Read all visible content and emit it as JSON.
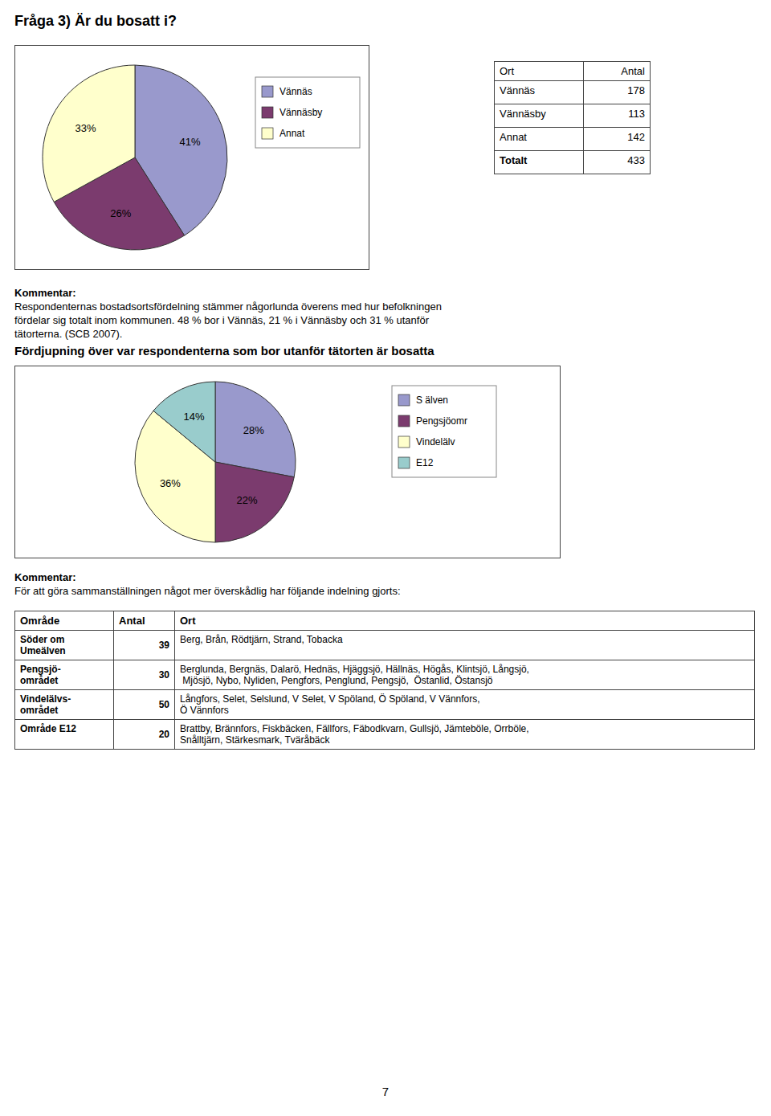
{
  "page_number": "7",
  "chart_data": [
    {
      "type": "pie",
      "title": "Fråga 3) Är du bosatt i?",
      "categories": [
        "Vännäs",
        "Vännäsby",
        "Annat"
      ],
      "values": [
        41,
        26,
        33
      ],
      "value_labels": [
        "41%",
        "26%",
        "33%"
      ],
      "colors": [
        "#9999CC",
        "#7B3B6E",
        "#FFFFCC"
      ],
      "data_labels": true,
      "legend": "right",
      "table": {
        "headers": [
          "Ort",
          "Antal"
        ],
        "rows": [
          [
            "Vännäs",
            "178"
          ],
          [
            "Vännäsby",
            "113"
          ],
          [
            "Annat",
            "142"
          ],
          [
            "Totalt",
            "433"
          ]
        ]
      },
      "annotations": [
        "Kommentar:",
        "Respondenternas bostadsortsfördelning stämmer någorlunda överens med hur befolkningen",
        "fördelar sig totalt inom kommunen. 48 % bor i Vännäs, 21 % i Vännäsby och 31 % utanför",
        "tätorterna. (SCB 2007)."
      ]
    },
    {
      "type": "pie",
      "title": "Fördjupning över var respondenterna som bor utanför tätorten är bosatta",
      "categories": [
        "S älven",
        "Pengsjöomr",
        "Vindelälv",
        "E12"
      ],
      "values": [
        28,
        22,
        36,
        14
      ],
      "value_labels": [
        "28%",
        "22%",
        "36%",
        "14%"
      ],
      "colors": [
        "#9999CC",
        "#7B3B6E",
        "#FFFFCC",
        "#99CCCC"
      ],
      "data_labels": true,
      "legend": "right",
      "annotations": [
        "Kommentar:",
        "För att göra sammanställningen något mer överskådlig har följande indelning gjorts:"
      ],
      "table": {
        "headers": [
          "Område",
          "Antal",
          "Ort"
        ],
        "rows": [
          [
            "Söder om\nUmeälven",
            "39",
            "Berg, Brån, Rödtjärn, Strand, Tobacka"
          ],
          [
            "Pengsjö-\nområdet",
            "30",
            "Berglunda, Bergnäs, Dalarö, Hednäs, Hjäggsjö, Hällnäs, Högås, Klintsjö, Långsjö,\n Mjösjö, Nybo, Nyliden, Pengfors, Penglund, Pengsjö,  Östanlid, Östansjö"
          ],
          [
            "Vindelälvs-\nområdet",
            "50",
            "Långfors, Selet, Selslund, V Selet, V Spöland, Ö Spöland, V Vännfors,\nÖ Vännfors"
          ],
          [
            "Område E12",
            "20",
            "Brattby, Brännfors, Fiskbäcken, Fällfors, Fäbodkvarn, Gullsjö, Jämteböle, Orrböle,\nSnålltjärn, Stärkesmark, Tväråbäck"
          ]
        ]
      }
    }
  ]
}
